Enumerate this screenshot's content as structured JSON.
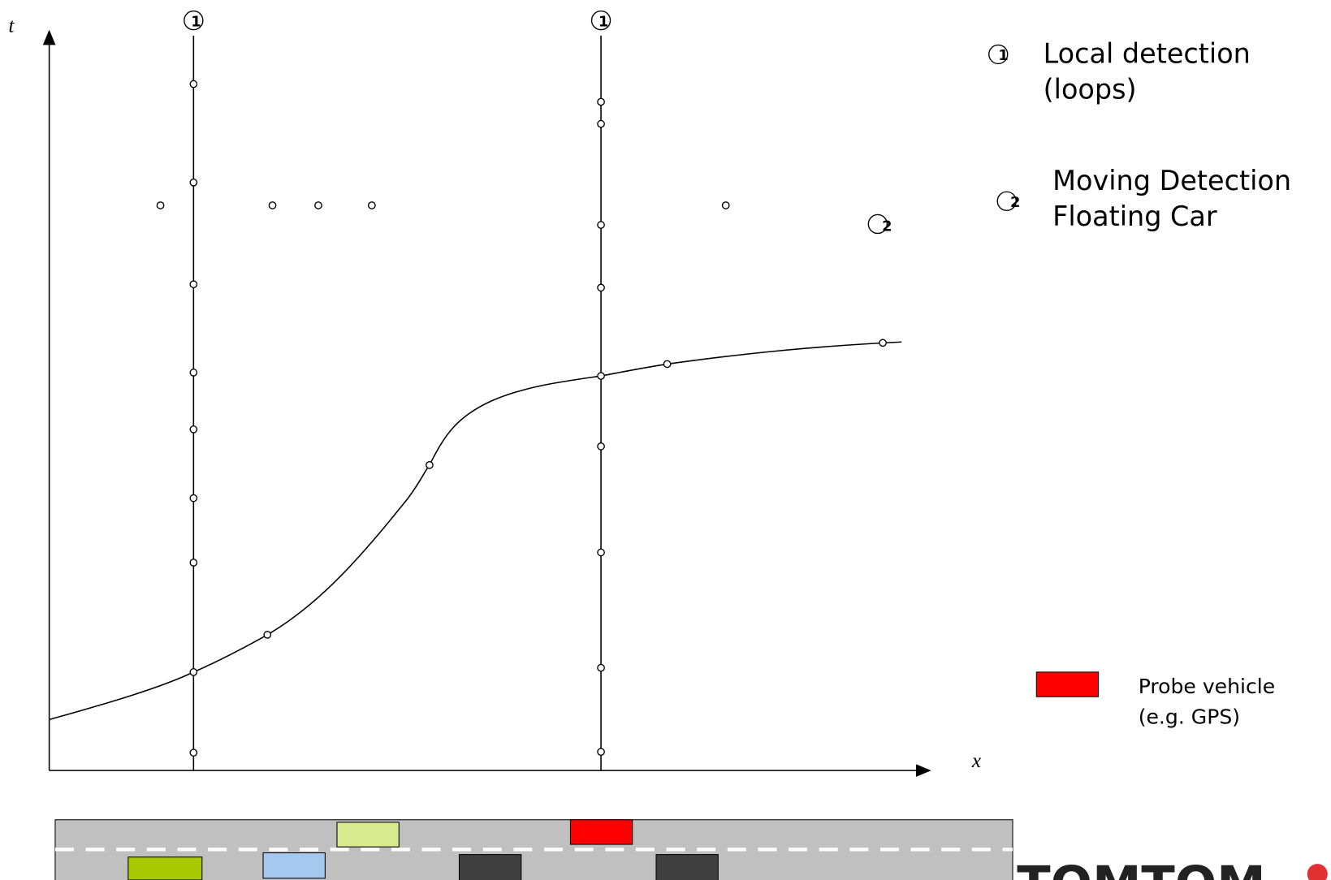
{
  "axes": {
    "t": "t",
    "x": "x"
  },
  "detectors": {
    "left": "1",
    "right": "1",
    "moving": "2"
  },
  "legend": {
    "local": {
      "symbol": "1",
      "line1": "Local detection",
      "line2": "(loops)"
    },
    "moving": {
      "symbol": "2",
      "line1": "Moving Detection",
      "line2": "Floating Car"
    },
    "probe": {
      "line1": "Probe vehicle",
      "line2": "(e.g. GPS)"
    }
  },
  "logo": "TOMTOM"
}
